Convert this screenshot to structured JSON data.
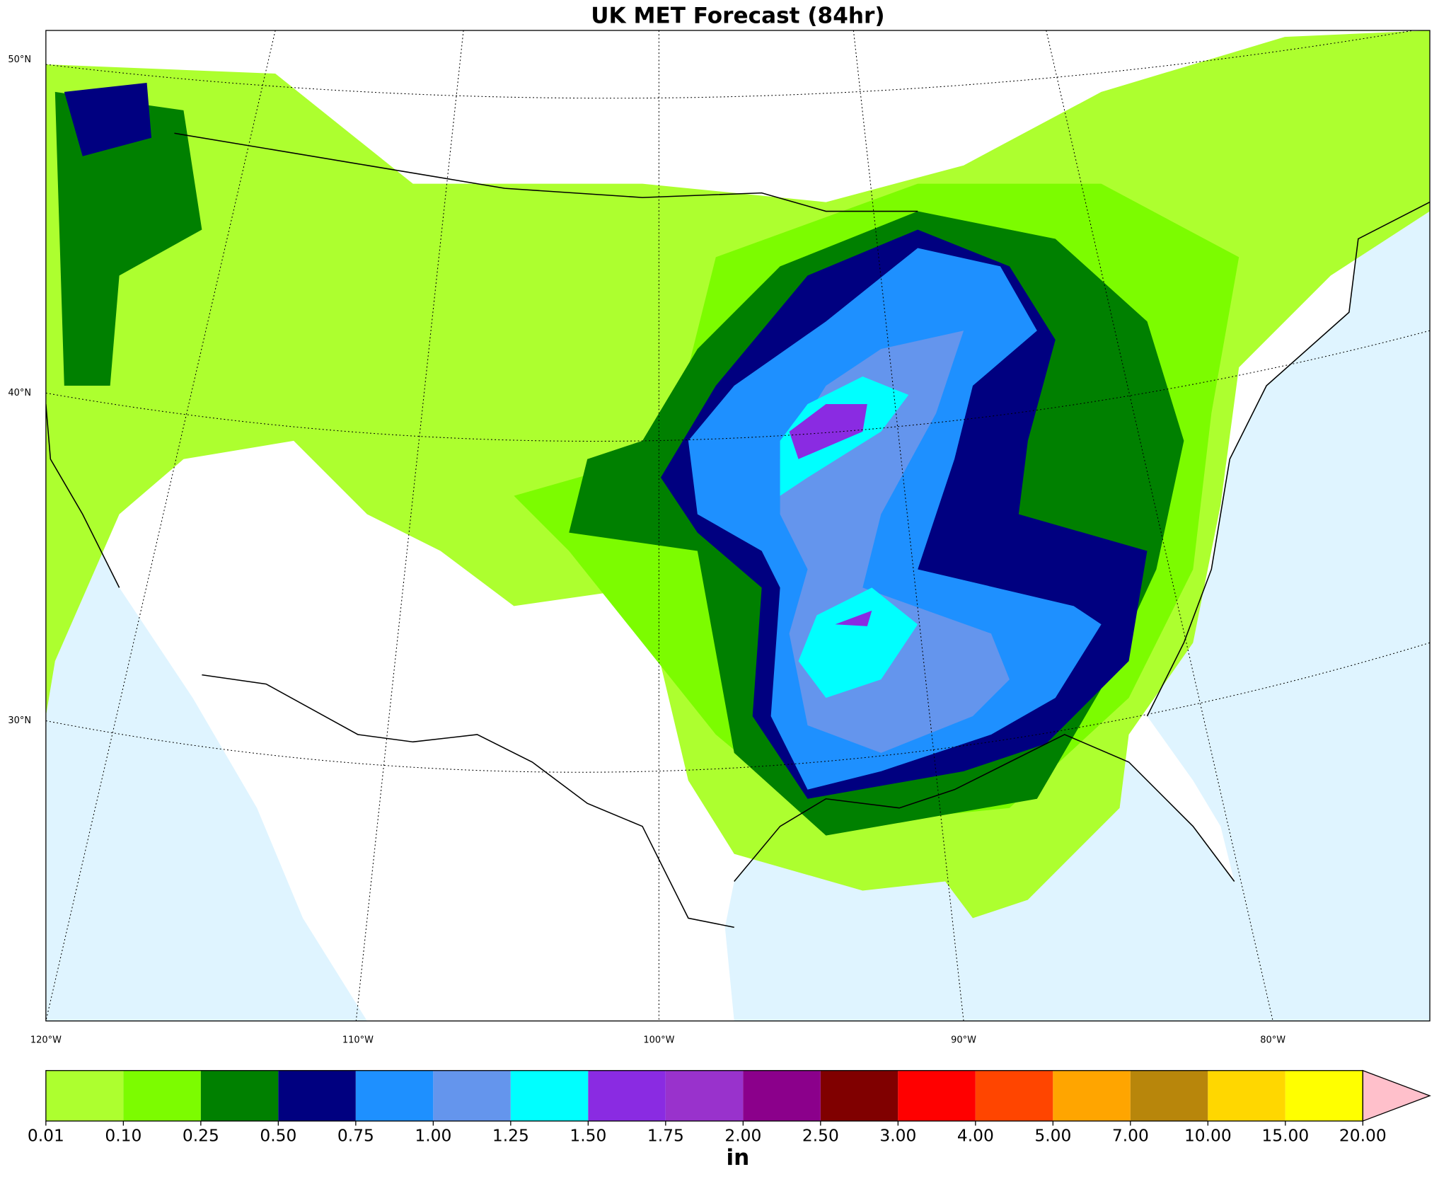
{
  "title": "UK MET Forecast (84hr)",
  "map": {
    "lat_labels": [
      "50°N",
      "40°N",
      "30°N"
    ],
    "lon_labels": [
      "120°W",
      "110°W",
      "100°W",
      "90°W",
      "80°W"
    ],
    "ocean_color": "#dff4ff",
    "land_color": "#ffffff"
  },
  "colorbar": {
    "levels": [
      {
        "value": 0.01,
        "label": "0.01"
      },
      {
        "value": 0.1,
        "label": "0.10"
      },
      {
        "value": 0.25,
        "label": "0.25"
      },
      {
        "value": 0.5,
        "label": "0.50"
      },
      {
        "value": 0.75,
        "label": "0.75"
      },
      {
        "value": 1,
        "label": "1.00"
      },
      {
        "value": 1.25,
        "label": "1.25"
      },
      {
        "value": 1.5,
        "label": "1.50"
      },
      {
        "value": 1.75,
        "label": "1.75"
      },
      {
        "value": 2,
        "label": "2.00"
      },
      {
        "value": 2.5,
        "label": "2.50"
      },
      {
        "value": 3,
        "label": "3.00"
      },
      {
        "value": 4,
        "label": "4.00"
      },
      {
        "value": 5,
        "label": "5.00"
      },
      {
        "value": 7,
        "label": "7.00"
      },
      {
        "value": 10,
        "label": "10.00"
      },
      {
        "value": 15,
        "label": "15.00"
      },
      {
        "value": 20,
        "label": "20.00"
      }
    ],
    "colors": [
      "#adff2f",
      "#7cfc00",
      "#008000",
      "#000080",
      "#1e90ff",
      "#6495ed",
      "#00ffff",
      "#8a2be2",
      "#9932cc",
      "#8b008b",
      "#800000",
      "#ff0000",
      "#ff4500",
      "#ffa500",
      "#b8860b",
      "#ffd700",
      "#ffff00"
    ],
    "extend_color": "#ffc0cb",
    "label": "in"
  }
}
